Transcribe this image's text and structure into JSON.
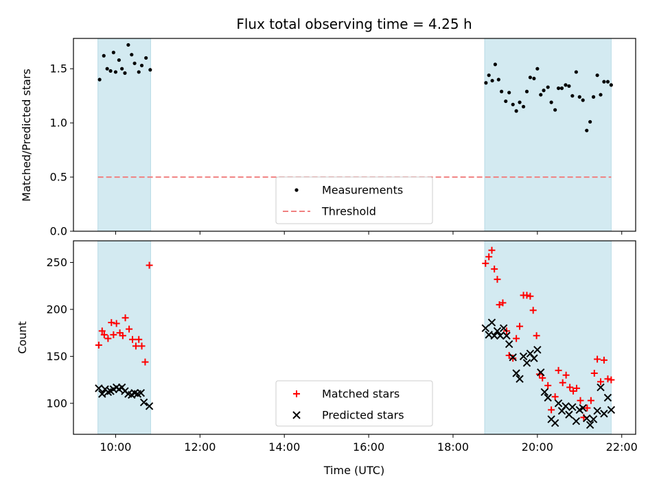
{
  "chart_data": {
    "title": "Flux total observing time = 4.25 h",
    "xlabel": "Time (UTC)",
    "x_ticks": [
      "10:00",
      "12:00",
      "14:00",
      "16:00",
      "18:00",
      "20:00",
      "22:00"
    ],
    "x_tick_hours": [
      10,
      12,
      14,
      16,
      18,
      20,
      22
    ],
    "xlim": [
      9.0,
      22.33
    ],
    "shaded_intervals": [
      [
        9.58,
        10.83
      ],
      [
        18.75,
        21.75
      ]
    ],
    "shade_color": "#d3eaf1",
    "panels": [
      {
        "type": "scatter",
        "ylabel": "Matched/Predicted stars",
        "ylim": [
          0,
          1.78
        ],
        "yticks": [
          0.0,
          0.5,
          1.0,
          1.5
        ],
        "ytick_labels": [
          "0.0",
          "0.5",
          "1.0",
          "1.5"
        ],
        "legend_position": "bottom-center",
        "threshold": {
          "name": "Threshold",
          "value": 0.5,
          "x_range": [
            9.58,
            21.75
          ],
          "color": "#f08080"
        },
        "series": [
          {
            "name": "Measurements",
            "marker": "dot",
            "color": "#000000",
            "x": [
              9.62,
              9.72,
              9.8,
              9.88,
              9.95,
              10.0,
              10.08,
              10.15,
              10.22,
              10.3,
              10.38,
              10.45,
              10.55,
              10.62,
              10.72,
              10.82,
              18.78,
              18.85,
              18.93,
              19.0,
              19.08,
              19.15,
              19.25,
              19.33,
              19.42,
              19.5,
              19.58,
              19.67,
              19.75,
              19.83,
              19.92,
              20.0,
              20.08,
              20.15,
              20.25,
              20.33,
              20.42,
              20.5,
              20.58,
              20.67,
              20.75,
              20.83,
              20.92,
              21.0,
              21.08,
              21.17,
              21.25,
              21.33,
              21.42,
              21.5,
              21.58,
              21.67,
              21.75
            ],
            "y": [
              1.4,
              1.62,
              1.5,
              1.48,
              1.65,
              1.47,
              1.58,
              1.5,
              1.46,
              1.72,
              1.63,
              1.55,
              1.47,
              1.53,
              1.6,
              1.49,
              1.37,
              1.44,
              1.39,
              1.54,
              1.4,
              1.29,
              1.2,
              1.28,
              1.17,
              1.11,
              1.19,
              1.15,
              1.29,
              1.42,
              1.41,
              1.5,
              1.26,
              1.3,
              1.33,
              1.19,
              1.12,
              1.32,
              1.32,
              1.35,
              1.34,
              1.25,
              1.47,
              1.24,
              1.21,
              0.93,
              1.01,
              1.24,
              1.44,
              1.26,
              1.38,
              1.38,
              1.35
            ]
          }
        ]
      },
      {
        "type": "scatter",
        "ylabel": "Count",
        "ylim": [
          67,
          273
        ],
        "yticks": [
          100,
          150,
          200,
          250
        ],
        "ytick_labels": [
          "100",
          "150",
          "200",
          "250"
        ],
        "legend_position": "bottom-center",
        "series": [
          {
            "name": "Matched stars",
            "marker": "plus",
            "color": "#ff0000",
            "x": [
              9.6,
              9.68,
              9.73,
              9.82,
              9.9,
              9.95,
              10.02,
              10.1,
              10.17,
              10.23,
              10.32,
              10.4,
              10.48,
              10.55,
              10.62,
              10.7,
              10.8,
              18.77,
              18.85,
              18.92,
              18.98,
              19.05,
              19.1,
              19.18,
              19.27,
              19.33,
              19.42,
              19.5,
              19.58,
              19.67,
              19.75,
              19.83,
              19.9,
              19.98,
              20.05,
              20.12,
              20.25,
              20.33,
              20.42,
              20.5,
              20.6,
              20.68,
              20.77,
              20.85,
              20.93,
              21.02,
              21.1,
              21.18,
              21.27,
              21.35,
              21.42,
              21.5,
              21.58,
              21.67,
              21.75
            ],
            "y": [
              162,
              177,
              173,
              169,
              186,
              173,
              185,
              175,
              172,
              191,
              179,
              168,
              161,
              168,
              161,
              144,
              247,
              249,
              256,
              263,
              243,
              232,
              205,
              207,
              177,
              151,
              148,
              169,
              182,
              215,
              215,
              214,
              199,
              172,
              131,
              127,
              119,
              93,
              107,
              135,
              122,
              130,
              117,
              113,
              116,
              103,
              85,
              95,
              103,
              132,
              147,
              123,
              146,
              126,
              125
            ]
          },
          {
            "name": "Predicted stars",
            "marker": "x",
            "color": "#000000",
            "x": [
              9.6,
              9.68,
              9.75,
              9.82,
              9.88,
              9.95,
              10.02,
              10.08,
              10.15,
              10.22,
              10.3,
              10.38,
              10.45,
              10.52,
              10.6,
              10.67,
              10.8,
              18.77,
              18.85,
              18.92,
              18.98,
              19.05,
              19.12,
              19.2,
              19.27,
              19.33,
              19.42,
              19.5,
              19.58,
              19.67,
              19.75,
              19.83,
              19.92,
              20.0,
              20.08,
              20.17,
              20.25,
              20.33,
              20.42,
              20.5,
              20.58,
              20.67,
              20.75,
              20.83,
              20.92,
              21.0,
              21.08,
              21.17,
              21.25,
              21.33,
              21.42,
              21.5,
              21.58,
              21.67,
              21.75
            ],
            "y": [
              116,
              110,
              115,
              112,
              113,
              115,
              117,
              115,
              117,
              113,
              110,
              109,
              111,
              110,
              111,
              101,
              97,
              180,
              173,
              186,
              172,
              177,
              172,
              180,
              172,
              163,
              149,
              132,
              126,
              150,
              143,
              153,
              148,
              157,
              133,
              112,
              106,
              83,
              79,
              100,
              92,
              97,
              88,
              96,
              81,
              93,
              95,
              84,
              77,
              83,
              92,
              117,
              89,
              106,
              93
            ]
          }
        ]
      }
    ]
  }
}
